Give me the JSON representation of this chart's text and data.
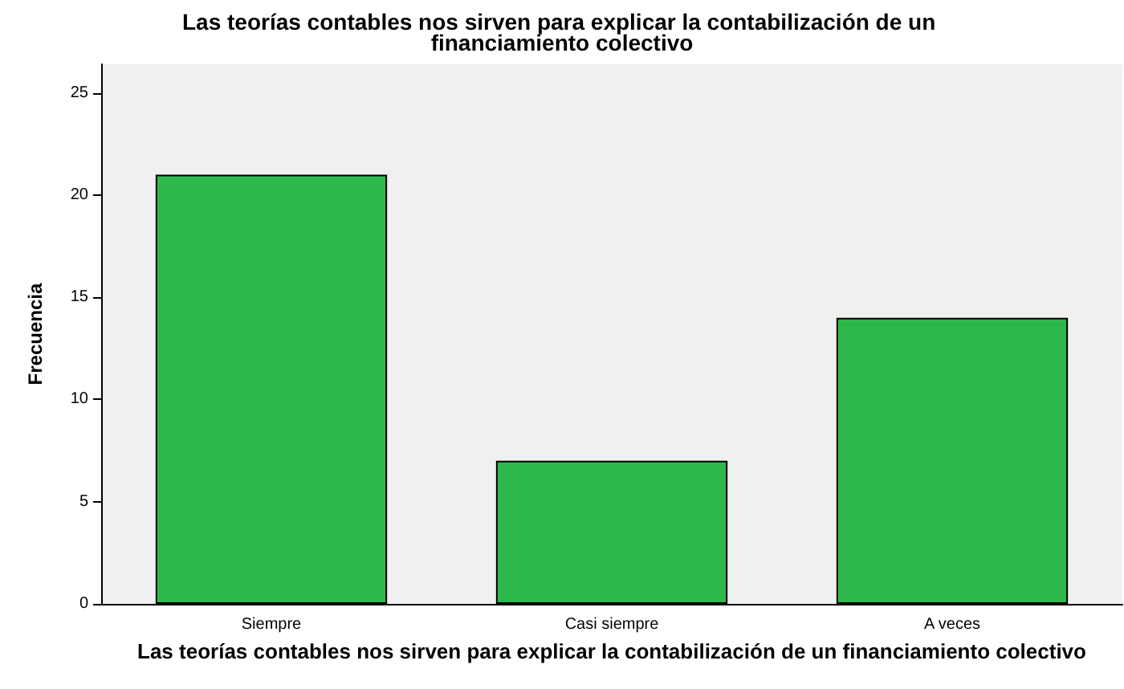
{
  "chart_data": {
    "type": "bar",
    "title": "Las teorías contables nos sirven para explicar la contabilización de un financiamiento colectivo",
    "xlabel": "Las teorías contables nos sirven para explicar la contabilización de un financiamiento colectivo",
    "ylabel": "Frecuencia",
    "categories": [
      "Siempre",
      "Casi siempre",
      "A veces"
    ],
    "values": [
      21,
      7,
      14
    ],
    "color": "#2eb84b",
    "ylim": [
      0,
      26.4
    ],
    "yticks": [
      0,
      5,
      10,
      15,
      20,
      25
    ]
  }
}
